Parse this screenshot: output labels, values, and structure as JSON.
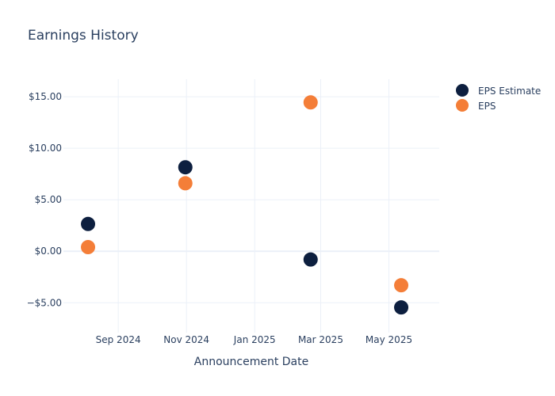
{
  "chart_data": {
    "type": "scatter",
    "title": "Earnings History",
    "xlabel": "Announcement Date",
    "ylabel": "",
    "ylim": [
      -7.9,
      16.7
    ],
    "xlim": [
      "2024-07-14",
      "2025-06-15"
    ],
    "x_ticks": [
      {
        "date": "2024-09-01",
        "label": "Sep 2024"
      },
      {
        "date": "2024-11-01",
        "label": "Nov 2024"
      },
      {
        "date": "2025-01-01",
        "label": "Jan 2025"
      },
      {
        "date": "2025-03-01",
        "label": "Mar 2025"
      },
      {
        "date": "2025-05-01",
        "label": "May 2025"
      }
    ],
    "y_ticks": [
      {
        "value": 15,
        "label": "$15.00"
      },
      {
        "value": 10,
        "label": "$10.00"
      },
      {
        "value": 5,
        "label": "$5.00"
      },
      {
        "value": 0,
        "label": "$0.00"
      },
      {
        "value": -5,
        "label": "−$5.00"
      }
    ],
    "x": [
      "2024-08-05",
      "2024-10-31",
      "2025-02-20",
      "2025-05-12"
    ],
    "series": [
      {
        "name": "EPS Estimate",
        "color": "#0d1f3f",
        "values": [
          2.65,
          8.15,
          -0.8,
          -5.45
        ]
      },
      {
        "name": "EPS",
        "color": "#f47e38",
        "values": [
          0.4,
          6.6,
          14.45,
          -3.3
        ]
      }
    ],
    "grid": true,
    "legend": "top-right"
  }
}
